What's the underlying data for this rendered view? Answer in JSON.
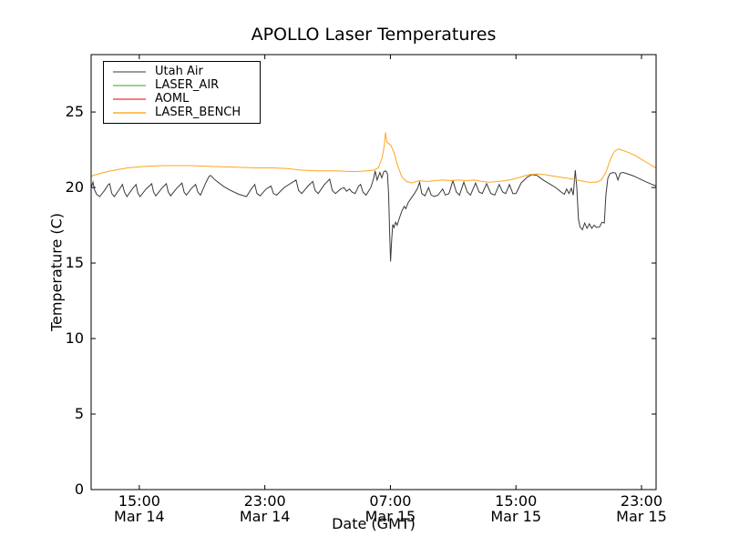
{
  "chart_data": {
    "type": "line",
    "title": "APOLLO Laser Temperatures",
    "xlabel": "Date (GMT)",
    "ylabel": "Temperature (C)",
    "x_unit": "hours since Mar 14 12:00 GMT",
    "xlim": [
      0,
      36
    ],
    "ylim": [
      0,
      28.8
    ],
    "yticks": [
      0,
      5,
      10,
      15,
      20,
      25
    ],
    "x_ticks": [
      {
        "t": 3.07,
        "time": "15:00",
        "date": "Mar 14"
      },
      {
        "t": 11.07,
        "time": "23:00",
        "date": "Mar 14"
      },
      {
        "t": 19.07,
        "time": "07:00",
        "date": "Mar 15"
      },
      {
        "t": 27.07,
        "time": "15:00",
        "date": "Mar 15"
      },
      {
        "t": 35.07,
        "time": "23:00",
        "date": "Mar 15"
      }
    ],
    "legend_position": "upper left",
    "grid": false,
    "series": [
      {
        "name": "Utah Air",
        "color": "#3a3a3a",
        "legend_color": "#9c9c9c",
        "points": [
          [
            0.0,
            20.0
          ],
          [
            0.12,
            20.35
          ],
          [
            0.2,
            19.9
          ],
          [
            0.35,
            19.55
          ],
          [
            0.55,
            19.4
          ],
          [
            0.85,
            19.8
          ],
          [
            1.1,
            20.2
          ],
          [
            1.18,
            20.25
          ],
          [
            1.32,
            19.6
          ],
          [
            1.48,
            19.4
          ],
          [
            1.78,
            19.85
          ],
          [
            2.0,
            20.2
          ],
          [
            2.12,
            19.7
          ],
          [
            2.28,
            19.4
          ],
          [
            2.62,
            19.9
          ],
          [
            2.86,
            20.2
          ],
          [
            2.97,
            19.65
          ],
          [
            3.12,
            19.4
          ],
          [
            3.5,
            19.9
          ],
          [
            3.86,
            20.25
          ],
          [
            3.98,
            19.7
          ],
          [
            4.12,
            19.45
          ],
          [
            4.5,
            19.95
          ],
          [
            4.79,
            20.25
          ],
          [
            4.92,
            19.7
          ],
          [
            5.07,
            19.45
          ],
          [
            5.45,
            19.95
          ],
          [
            5.79,
            20.3
          ],
          [
            5.92,
            19.7
          ],
          [
            6.07,
            19.5
          ],
          [
            6.4,
            19.95
          ],
          [
            6.66,
            20.2
          ],
          [
            6.8,
            19.7
          ],
          [
            6.97,
            19.5
          ],
          [
            7.3,
            20.3
          ],
          [
            7.52,
            20.75
          ],
          [
            7.62,
            20.8
          ],
          [
            7.9,
            20.5
          ],
          [
            8.4,
            20.1
          ],
          [
            8.9,
            19.8
          ],
          [
            9.4,
            19.55
          ],
          [
            9.9,
            19.4
          ],
          [
            10.2,
            19.9
          ],
          [
            10.43,
            20.2
          ],
          [
            10.57,
            19.6
          ],
          [
            10.77,
            19.45
          ],
          [
            11.15,
            19.9
          ],
          [
            11.46,
            20.1
          ],
          [
            11.62,
            19.6
          ],
          [
            11.82,
            19.5
          ],
          [
            12.3,
            20.0
          ],
          [
            13.06,
            20.5
          ],
          [
            13.22,
            19.8
          ],
          [
            13.42,
            19.6
          ],
          [
            13.82,
            20.1
          ],
          [
            14.12,
            20.4
          ],
          [
            14.27,
            19.8
          ],
          [
            14.47,
            19.6
          ],
          [
            14.87,
            20.2
          ],
          [
            15.2,
            20.55
          ],
          [
            15.37,
            19.8
          ],
          [
            15.57,
            19.6
          ],
          [
            15.9,
            19.9
          ],
          [
            16.12,
            20.0
          ],
          [
            16.27,
            19.75
          ],
          [
            16.47,
            19.9
          ],
          [
            16.62,
            19.7
          ],
          [
            16.82,
            19.6
          ],
          [
            17.05,
            20.1
          ],
          [
            17.17,
            20.2
          ],
          [
            17.32,
            19.7
          ],
          [
            17.52,
            19.5
          ],
          [
            17.82,
            20.0
          ],
          [
            18.0,
            20.6
          ],
          [
            18.1,
            21.1
          ],
          [
            18.22,
            20.5
          ],
          [
            18.4,
            21.0
          ],
          [
            18.52,
            20.65
          ],
          [
            18.65,
            21.05
          ],
          [
            18.78,
            21.1
          ],
          [
            18.88,
            20.9
          ],
          [
            18.96,
            19.5
          ],
          [
            19.02,
            17.0
          ],
          [
            19.08,
            15.1
          ],
          [
            19.15,
            16.5
          ],
          [
            19.22,
            17.55
          ],
          [
            19.3,
            17.35
          ],
          [
            19.4,
            17.7
          ],
          [
            19.5,
            17.5
          ],
          [
            19.62,
            17.9
          ],
          [
            19.8,
            18.45
          ],
          [
            19.95,
            18.75
          ],
          [
            20.05,
            18.6
          ],
          [
            20.2,
            19.0
          ],
          [
            20.4,
            19.3
          ],
          [
            20.6,
            19.6
          ],
          [
            20.8,
            19.95
          ],
          [
            20.93,
            20.35
          ],
          [
            21.07,
            19.6
          ],
          [
            21.27,
            19.45
          ],
          [
            21.5,
            20.0
          ],
          [
            21.67,
            19.5
          ],
          [
            21.87,
            19.4
          ],
          [
            22.1,
            19.5
          ],
          [
            22.4,
            19.9
          ],
          [
            22.57,
            19.5
          ],
          [
            22.8,
            19.6
          ],
          [
            23.05,
            20.45
          ],
          [
            23.27,
            19.7
          ],
          [
            23.47,
            19.5
          ],
          [
            23.75,
            20.35
          ],
          [
            23.97,
            19.7
          ],
          [
            24.17,
            19.5
          ],
          [
            24.5,
            20.3
          ],
          [
            24.72,
            19.7
          ],
          [
            24.92,
            19.6
          ],
          [
            25.2,
            20.25
          ],
          [
            25.47,
            19.6
          ],
          [
            25.72,
            19.5
          ],
          [
            26.0,
            20.2
          ],
          [
            26.22,
            19.7
          ],
          [
            26.42,
            19.6
          ],
          [
            26.65,
            20.2
          ],
          [
            26.87,
            19.6
          ],
          [
            27.07,
            19.6
          ],
          [
            27.4,
            20.3
          ],
          [
            27.8,
            20.7
          ],
          [
            28.1,
            20.85
          ],
          [
            28.42,
            20.8
          ],
          [
            28.8,
            20.5
          ],
          [
            29.2,
            20.25
          ],
          [
            29.6,
            20.0
          ],
          [
            29.95,
            19.7
          ],
          [
            30.15,
            19.55
          ],
          [
            30.3,
            19.9
          ],
          [
            30.45,
            19.6
          ],
          [
            30.6,
            19.95
          ],
          [
            30.72,
            19.5
          ],
          [
            30.85,
            21.15
          ],
          [
            30.95,
            20.0
          ],
          [
            31.05,
            17.9
          ],
          [
            31.15,
            17.4
          ],
          [
            31.3,
            17.2
          ],
          [
            31.45,
            17.65
          ],
          [
            31.6,
            17.3
          ],
          [
            31.75,
            17.6
          ],
          [
            31.9,
            17.3
          ],
          [
            32.05,
            17.5
          ],
          [
            32.2,
            17.35
          ],
          [
            32.4,
            17.4
          ],
          [
            32.55,
            17.7
          ],
          [
            32.7,
            17.65
          ],
          [
            32.8,
            19.5
          ],
          [
            32.92,
            20.6
          ],
          [
            33.05,
            20.9
          ],
          [
            33.25,
            21.0
          ],
          [
            33.42,
            20.95
          ],
          [
            33.57,
            20.5
          ],
          [
            33.72,
            20.95
          ],
          [
            33.9,
            21.0
          ],
          [
            34.2,
            20.9
          ],
          [
            34.6,
            20.75
          ],
          [
            35.0,
            20.55
          ],
          [
            35.4,
            20.35
          ],
          [
            35.75,
            20.2
          ],
          [
            36.0,
            20.1
          ]
        ]
      },
      {
        "name": "LASER_AIR",
        "color": "#9fd08d",
        "legend_color": "#9fd08d",
        "points": [
          [
            0,
            0
          ],
          [
            36,
            0
          ]
        ]
      },
      {
        "name": "AOML",
        "color": "#f57e7e",
        "legend_color": "#f57e7e",
        "points": [
          [
            0,
            0
          ],
          [
            36,
            0
          ]
        ]
      },
      {
        "name": "LASER_BENCH",
        "color": "#ffa51f",
        "legend_color": "#fdc25f",
        "points": [
          [
            0.0,
            20.75
          ],
          [
            0.3,
            20.85
          ],
          [
            0.8,
            21.0
          ],
          [
            1.5,
            21.15
          ],
          [
            2.3,
            21.3
          ],
          [
            3.5,
            21.4
          ],
          [
            4.6,
            21.45
          ],
          [
            6.4,
            21.45
          ],
          [
            7.5,
            21.4
          ],
          [
            9.0,
            21.35
          ],
          [
            10.5,
            21.3
          ],
          [
            11.6,
            21.3
          ],
          [
            12.5,
            21.25
          ],
          [
            13.4,
            21.15
          ],
          [
            14.5,
            21.1
          ],
          [
            15.6,
            21.1
          ],
          [
            16.8,
            21.05
          ],
          [
            17.6,
            21.1
          ],
          [
            18.0,
            21.15
          ],
          [
            18.3,
            21.3
          ],
          [
            18.55,
            22.0
          ],
          [
            18.68,
            22.8
          ],
          [
            18.76,
            23.65
          ],
          [
            18.85,
            23.0
          ],
          [
            19.1,
            22.8
          ],
          [
            19.3,
            22.3
          ],
          [
            19.55,
            21.4
          ],
          [
            19.8,
            20.7
          ],
          [
            20.1,
            20.4
          ],
          [
            20.4,
            20.3
          ],
          [
            20.9,
            20.45
          ],
          [
            21.4,
            20.4
          ],
          [
            21.9,
            20.45
          ],
          [
            22.4,
            20.5
          ],
          [
            22.9,
            20.45
          ],
          [
            23.4,
            20.5
          ],
          [
            23.9,
            20.45
          ],
          [
            24.4,
            20.5
          ],
          [
            24.9,
            20.4
          ],
          [
            25.4,
            20.35
          ],
          [
            25.9,
            20.4
          ],
          [
            26.4,
            20.45
          ],
          [
            26.9,
            20.55
          ],
          [
            27.4,
            20.7
          ],
          [
            27.9,
            20.85
          ],
          [
            28.4,
            20.9
          ],
          [
            28.9,
            20.85
          ],
          [
            29.5,
            20.75
          ],
          [
            30.1,
            20.65
          ],
          [
            30.7,
            20.55
          ],
          [
            31.2,
            20.45
          ],
          [
            31.7,
            20.35
          ],
          [
            32.2,
            20.35
          ],
          [
            32.5,
            20.5
          ],
          [
            32.8,
            21.0
          ],
          [
            33.1,
            21.9
          ],
          [
            33.35,
            22.4
          ],
          [
            33.6,
            22.55
          ],
          [
            33.9,
            22.45
          ],
          [
            34.3,
            22.3
          ],
          [
            34.7,
            22.1
          ],
          [
            35.1,
            21.85
          ],
          [
            35.5,
            21.6
          ],
          [
            35.8,
            21.4
          ],
          [
            36.0,
            21.3
          ]
        ]
      }
    ]
  }
}
